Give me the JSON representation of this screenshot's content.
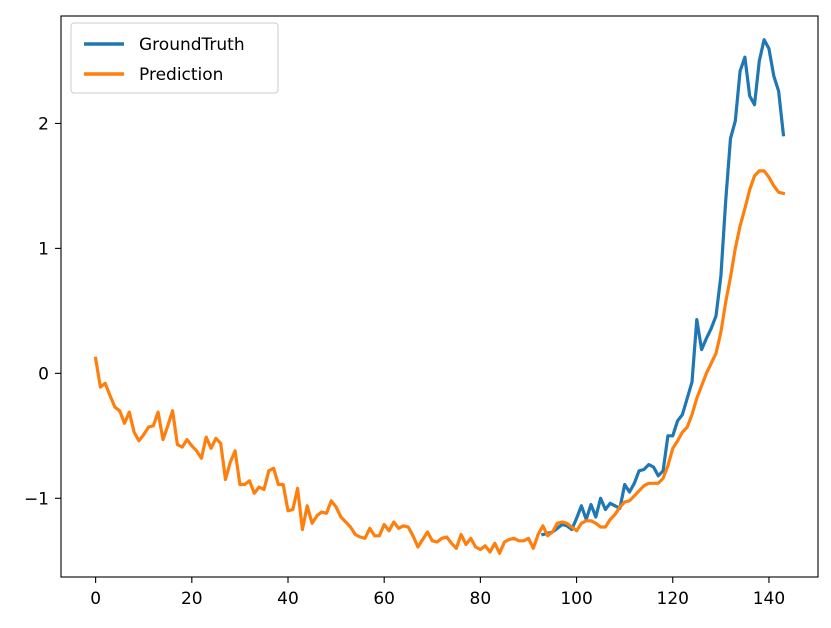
{
  "colors": {
    "groundtruth": "#1f77b4",
    "prediction": "#ff7f0e"
  },
  "chart_data": {
    "type": "line",
    "title": "",
    "xlabel": "",
    "ylabel": "",
    "xlim": [
      -7.2,
      150.2
    ],
    "ylim": [
      -1.63,
      2.86
    ],
    "xticks": [
      0,
      20,
      40,
      60,
      80,
      100,
      120,
      140
    ],
    "yticks": [
      -1,
      0,
      1,
      2
    ],
    "grid": false,
    "legend": {
      "placement": "top-left"
    },
    "series": [
      {
        "name": "GroundTruth",
        "color": "#1f77b4",
        "x": [
          93,
          94,
          95,
          96,
          97,
          98,
          99,
          100,
          101,
          102,
          103,
          104,
          105,
          106,
          107,
          108,
          109,
          110,
          111,
          112,
          113,
          114,
          115,
          116,
          117,
          118,
          119,
          120,
          121,
          122,
          123,
          124,
          125,
          126,
          127,
          128,
          129,
          130,
          131,
          132,
          133,
          134,
          135,
          136,
          137,
          138,
          139,
          140,
          141,
          142,
          143
        ],
        "values": [
          -1.29,
          -1.28,
          -1.27,
          -1.24,
          -1.21,
          -1.22,
          -1.25,
          -1.16,
          -1.06,
          -1.17,
          -1.05,
          -1.15,
          -1.0,
          -1.09,
          -1.04,
          -1.06,
          -1.08,
          -0.89,
          -0.95,
          -0.88,
          -0.78,
          -0.77,
          -0.73,
          -0.75,
          -0.82,
          -0.78,
          -0.5,
          -0.5,
          -0.38,
          -0.33,
          -0.2,
          -0.07,
          0.43,
          0.19,
          0.28,
          0.36,
          0.46,
          0.78,
          1.38,
          1.88,
          2.02,
          2.42,
          2.53,
          2.22,
          2.15,
          2.5,
          2.67,
          2.6,
          2.38,
          2.26,
          1.91
        ]
      },
      {
        "name": "Prediction",
        "color": "#ff7f0e",
        "x": [
          0,
          1,
          2,
          3,
          4,
          5,
          6,
          7,
          8,
          9,
          10,
          11,
          12,
          13,
          14,
          15,
          16,
          17,
          18,
          19,
          20,
          21,
          22,
          23,
          24,
          25,
          26,
          27,
          28,
          29,
          30,
          31,
          32,
          33,
          34,
          35,
          36,
          37,
          38,
          39,
          40,
          41,
          42,
          43,
          44,
          45,
          46,
          47,
          48,
          49,
          50,
          51,
          52,
          53,
          54,
          55,
          56,
          57,
          58,
          59,
          60,
          61,
          62,
          63,
          64,
          65,
          66,
          67,
          68,
          69,
          70,
          71,
          72,
          73,
          74,
          75,
          76,
          77,
          78,
          79,
          80,
          81,
          82,
          83,
          84,
          85,
          86,
          87,
          88,
          89,
          90,
          91,
          92,
          93,
          94,
          95,
          96,
          97,
          98,
          99,
          100,
          101,
          102,
          103,
          104,
          105,
          106,
          107,
          108,
          109,
          110,
          111,
          112,
          113,
          114,
          115,
          116,
          117,
          118,
          119,
          120,
          121,
          122,
          123,
          124,
          125,
          126,
          127,
          128,
          129,
          130,
          131,
          132,
          133,
          134,
          135,
          136,
          137,
          138,
          139,
          140,
          141,
          142,
          143
        ],
        "values": [
          0.12,
          -0.11,
          -0.08,
          -0.18,
          -0.27,
          -0.3,
          -0.4,
          -0.31,
          -0.47,
          -0.54,
          -0.49,
          -0.43,
          -0.42,
          -0.31,
          -0.53,
          -0.42,
          -0.3,
          -0.57,
          -0.59,
          -0.53,
          -0.58,
          -0.62,
          -0.68,
          -0.51,
          -0.6,
          -0.52,
          -0.56,
          -0.85,
          -0.71,
          -0.62,
          -0.89,
          -0.89,
          -0.86,
          -0.96,
          -0.91,
          -0.93,
          -0.78,
          -0.76,
          -0.89,
          -0.89,
          -1.1,
          -1.09,
          -0.92,
          -1.25,
          -1.06,
          -1.2,
          -1.14,
          -1.11,
          -1.12,
          -1.02,
          -1.07,
          -1.15,
          -1.19,
          -1.23,
          -1.29,
          -1.31,
          -1.32,
          -1.24,
          -1.3,
          -1.3,
          -1.21,
          -1.26,
          -1.19,
          -1.24,
          -1.22,
          -1.23,
          -1.3,
          -1.39,
          -1.33,
          -1.27,
          -1.34,
          -1.35,
          -1.32,
          -1.31,
          -1.36,
          -1.4,
          -1.29,
          -1.37,
          -1.32,
          -1.39,
          -1.41,
          -1.38,
          -1.43,
          -1.36,
          -1.44,
          -1.35,
          -1.33,
          -1.32,
          -1.34,
          -1.34,
          -1.32,
          -1.4,
          -1.29,
          -1.22,
          -1.3,
          -1.27,
          -1.2,
          -1.19,
          -1.2,
          -1.23,
          -1.26,
          -1.2,
          -1.18,
          -1.18,
          -1.2,
          -1.23,
          -1.23,
          -1.17,
          -1.13,
          -1.07,
          -1.03,
          -1.02,
          -0.98,
          -0.94,
          -0.9,
          -0.88,
          -0.88,
          -0.88,
          -0.84,
          -0.74,
          -0.6,
          -0.54,
          -0.47,
          -0.43,
          -0.33,
          -0.2,
          -0.1,
          0.0,
          0.08,
          0.16,
          0.33,
          0.57,
          0.77,
          1.0,
          1.18,
          1.32,
          1.47,
          1.58,
          1.62,
          1.62,
          1.57,
          1.5,
          1.45,
          1.44
        ]
      }
    ]
  }
}
